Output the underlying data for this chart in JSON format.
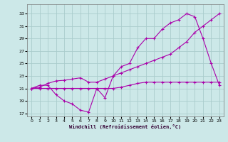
{
  "xlabel": "Windchill (Refroidissement éolien,°C)",
  "background_color": "#cce8e8",
  "grid_color": "#aacccc",
  "line_color": "#aa00aa",
  "xlim": [
    -0.5,
    23.5
  ],
  "ylim": [
    16.5,
    34.5
  ],
  "xticks": [
    0,
    1,
    2,
    3,
    4,
    5,
    6,
    7,
    8,
    9,
    10,
    11,
    12,
    13,
    14,
    15,
    16,
    17,
    18,
    19,
    20,
    21,
    22,
    23
  ],
  "yticks": [
    17,
    19,
    21,
    23,
    25,
    27,
    29,
    31,
    33
  ],
  "line1_x": [
    0,
    1,
    2,
    3,
    4,
    5,
    6,
    7,
    8,
    9,
    10,
    11,
    12,
    13,
    14,
    15,
    16,
    17,
    18,
    19,
    20,
    21,
    22,
    23
  ],
  "line1_y": [
    21,
    21.5,
    21.5,
    20,
    19,
    18.5,
    17.5,
    17.2,
    21,
    19.5,
    23,
    24.5,
    25,
    27.5,
    29,
    29,
    30.5,
    31.5,
    32,
    33,
    32.5,
    29,
    25,
    21.5
  ],
  "line2_x": [
    0,
    1,
    2,
    3,
    4,
    5,
    6,
    7,
    8,
    9,
    10,
    11,
    12,
    13,
    14,
    15,
    16,
    17,
    18,
    19,
    20,
    21,
    22,
    23
  ],
  "line2_y": [
    21,
    21.2,
    21.8,
    22.2,
    22.3,
    22.5,
    22.7,
    22.0,
    22.0,
    22.5,
    23,
    23.5,
    24,
    24.5,
    25,
    25.5,
    26,
    26.5,
    27.5,
    28.5,
    30,
    31,
    32,
    33
  ],
  "line3_x": [
    0,
    1,
    2,
    3,
    4,
    5,
    6,
    7,
    8,
    9,
    10,
    11,
    12,
    13,
    14,
    15,
    16,
    17,
    18,
    19,
    20,
    21,
    22,
    23
  ],
  "line3_y": [
    21,
    21,
    21,
    21,
    21,
    21,
    21,
    21,
    21,
    21,
    21,
    21.2,
    21.5,
    21.8,
    22,
    22,
    22,
    22,
    22,
    22,
    22,
    22,
    22,
    22
  ]
}
